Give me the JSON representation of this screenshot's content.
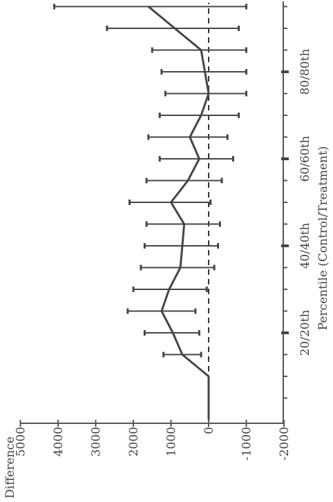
{
  "chart_data": {
    "type": "line",
    "orientation": "rotated-90-clockwise",
    "xlabel": "Percentile (Control/Treatment)",
    "ylabel": "Difference",
    "x_tick_labels": [
      "20/20th",
      "40/40th",
      "60/60th",
      "80/80th"
    ],
    "x_major_ticks": [
      20,
      40,
      60,
      80
    ],
    "xlim": [
      0,
      95
    ],
    "ylim": [
      -2000,
      5000
    ],
    "y_ticks": [
      -2000,
      -1000,
      0,
      1000,
      2000,
      3000,
      4000,
      5000
    ],
    "y_tick_labels": [
      "-2000",
      "-1000",
      "0",
      "1000",
      "2000",
      "3000",
      "4000",
      "5000"
    ],
    "reference_line": 0,
    "series": [
      {
        "x": [
          10,
          15,
          20,
          25,
          30,
          35,
          40,
          45,
          50,
          55,
          60,
          65,
          70,
          75,
          80,
          85,
          90,
          95
        ],
        "y": [
          0,
          700,
          950,
          1250,
          1050,
          750,
          700,
          650,
          1000,
          550,
          250,
          500,
          200,
          0,
          100,
          200,
          900,
          1600
        ],
        "lower": [
          0,
          200,
          250,
          350,
          50,
          -150,
          -250,
          -300,
          -50,
          -350,
          -650,
          -500,
          -800,
          -1000,
          -1000,
          -1000,
          -800,
          -1000
        ],
        "upper": [
          0,
          1200,
          1700,
          2150,
          2000,
          1800,
          1700,
          1650,
          2100,
          1650,
          1300,
          1600,
          1300,
          1150,
          1250,
          1500,
          2700,
          4100
        ]
      }
    ]
  }
}
